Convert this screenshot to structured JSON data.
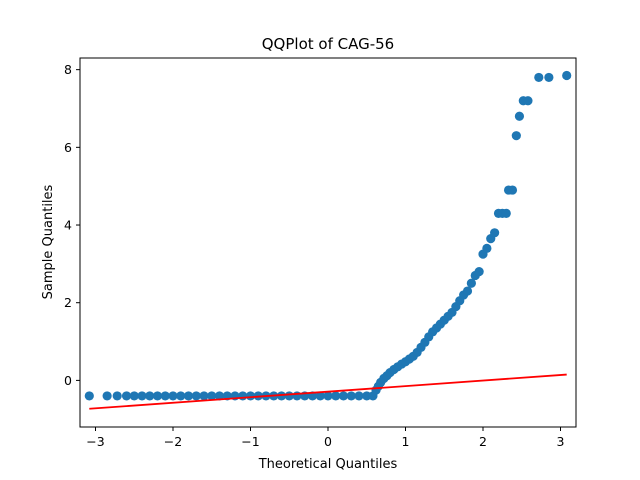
{
  "chart_data": {
    "type": "scatter",
    "title": "QQPlot of CAG-56",
    "xlabel": "Theoretical Quantiles",
    "ylabel": "Sample Quantiles",
    "xlim": [
      -3.2,
      3.2
    ],
    "ylim": [
      -1.2,
      8.3
    ],
    "xticks": [
      -3,
      -2,
      -1,
      0,
      1,
      2,
      3
    ],
    "yticks": [
      0,
      2,
      4,
      6,
      8
    ],
    "grid": false,
    "legend": "none",
    "colors": {
      "points": "#1f77b4",
      "reference_line": "#ff0000"
    },
    "series": [
      {
        "kind": "points",
        "x": [
          -3.08,
          -2.85,
          -2.72,
          -2.6,
          -2.5,
          -2.4,
          -2.3,
          -2.2,
          -2.1,
          -2.0,
          -1.9,
          -1.8,
          -1.7,
          -1.6,
          -1.5,
          -1.4,
          -1.3,
          -1.2,
          -1.1,
          -1.0,
          -0.9,
          -0.8,
          -0.7,
          -0.6,
          -0.5,
          -0.4,
          -0.3,
          -0.2,
          -0.1,
          0.0,
          0.1,
          0.2,
          0.3,
          0.4,
          0.5,
          0.58,
          0.62,
          0.65,
          0.68,
          0.72,
          0.76,
          0.8,
          0.85,
          0.9,
          0.95,
          1.0,
          1.05,
          1.1,
          1.15,
          1.2,
          1.25,
          1.3,
          1.35,
          1.4,
          1.45,
          1.5,
          1.55,
          1.6,
          1.65,
          1.7,
          1.75,
          1.8,
          1.85,
          1.9,
          1.95,
          2.0,
          2.05,
          2.1,
          2.15,
          2.2,
          2.25,
          2.3,
          2.33,
          2.38,
          2.43,
          2.47,
          2.52,
          2.58,
          2.72,
          2.85,
          3.08
        ],
        "y": [
          -0.4,
          -0.4,
          -0.4,
          -0.4,
          -0.4,
          -0.4,
          -0.4,
          -0.4,
          -0.4,
          -0.4,
          -0.4,
          -0.4,
          -0.4,
          -0.4,
          -0.4,
          -0.4,
          -0.4,
          -0.4,
          -0.4,
          -0.4,
          -0.4,
          -0.4,
          -0.4,
          -0.4,
          -0.4,
          -0.4,
          -0.4,
          -0.4,
          -0.4,
          -0.4,
          -0.4,
          -0.4,
          -0.4,
          -0.4,
          -0.4,
          -0.4,
          -0.25,
          -0.15,
          -0.05,
          0.05,
          0.12,
          0.2,
          0.28,
          0.35,
          0.42,
          0.48,
          0.55,
          0.62,
          0.72,
          0.85,
          0.98,
          1.12,
          1.25,
          1.35,
          1.45,
          1.55,
          1.65,
          1.75,
          1.9,
          2.05,
          2.2,
          2.3,
          2.5,
          2.7,
          2.8,
          3.25,
          3.4,
          3.65,
          3.8,
          4.3,
          4.3,
          4.3,
          4.9,
          4.9,
          6.3,
          6.8,
          7.2,
          7.2,
          7.8,
          7.8,
          7.85
        ]
      },
      {
        "kind": "reference_line",
        "x": [
          -3.08,
          3.08
        ],
        "y": [
          -0.73,
          0.15
        ]
      }
    ]
  }
}
